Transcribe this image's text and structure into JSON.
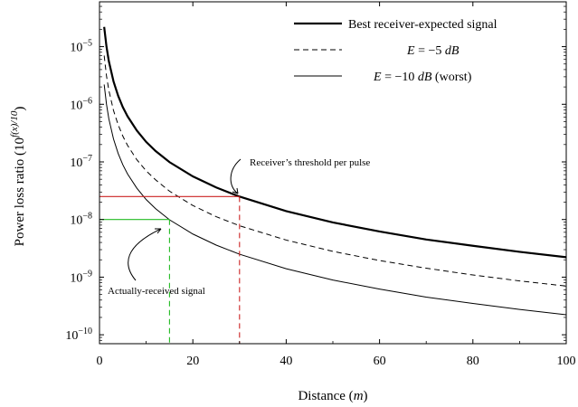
{
  "chart_data": {
    "type": "line",
    "title": "",
    "xlabel": "Distance (m)",
    "ylabel": "Power loss ratio (10^(f(x)/10))",
    "xlim": [
      0,
      100
    ],
    "ylim": [
      7e-11,
      6e-05
    ],
    "yscale": "log",
    "x_ticks": [
      0,
      20,
      40,
      60,
      80,
      100
    ],
    "y_ticks": [
      1e-10,
      1e-09,
      1e-08,
      1e-07,
      1e-06,
      1e-05
    ],
    "x_tick_labels": [
      "0",
      "20",
      "40",
      "60",
      "80",
      "100"
    ],
    "y_tick_labels": [
      {
        "base": "10",
        "exp": "−10"
      },
      {
        "base": "10",
        "exp": "−9"
      },
      {
        "base": "10",
        "exp": "−8"
      },
      {
        "base": "10",
        "exp": "−7"
      },
      {
        "base": "10",
        "exp": "−6"
      },
      {
        "base": "10",
        "exp": "−5"
      }
    ],
    "grid": false,
    "legend_position": "top-right",
    "series": [
      {
        "name": "Best receiver-expected signal",
        "style": "solid-thick",
        "color": "#000000",
        "x": [
          1,
          1.5,
          2,
          3,
          4,
          5,
          6,
          8,
          10,
          12,
          15,
          20,
          25,
          30,
          40,
          50,
          60,
          70,
          80,
          90,
          100
        ],
        "y": [
          2.2e-05,
          1e-05,
          5.6e-06,
          2.5e-06,
          1.4e-06,
          8.9e-07,
          6.2e-07,
          3.5e-07,
          2.22e-07,
          1.55e-07,
          9.9e-08,
          5.6e-08,
          3.6e-08,
          2.5e-08,
          1.4e-08,
          8.9e-09,
          6.2e-09,
          4.5e-09,
          3.5e-09,
          2.75e-09,
          2.22e-09
        ]
      },
      {
        "name": "E = −5 dB",
        "style": "dashed",
        "color": "#000000",
        "x": [
          1,
          1.5,
          2,
          3,
          4,
          5,
          6,
          8,
          10,
          12,
          15,
          20,
          25,
          30,
          40,
          50,
          60,
          70,
          80,
          90,
          100
        ],
        "y": [
          7e-06,
          3.1e-06,
          1.75e-06,
          7.8e-07,
          4.4e-07,
          2.8e-07,
          1.94e-07,
          1.09e-07,
          7e-08,
          4.9e-08,
          3.1e-08,
          1.75e-08,
          1.12e-08,
          7.8e-09,
          4.4e-09,
          2.8e-09,
          1.94e-09,
          1.43e-09,
          1.09e-09,
          8.6e-10,
          7e-10
        ]
      },
      {
        "name": "E = −10 dB (worst)",
        "style": "solid-thin",
        "color": "#000000",
        "x": [
          1,
          1.5,
          2,
          3,
          4,
          5,
          6,
          8,
          10,
          12,
          15,
          20,
          25,
          30,
          40,
          50,
          60,
          70,
          80,
          90,
          100
        ],
        "y": [
          2.2e-06,
          1e-06,
          5.6e-07,
          2.5e-07,
          1.4e-07,
          8.9e-08,
          6.2e-08,
          3.5e-08,
          2.22e-08,
          1.55e-08,
          9.9e-09,
          5.6e-09,
          3.6e-09,
          2.5e-09,
          1.4e-09,
          8.9e-10,
          6.2e-10,
          4.5e-10,
          3.5e-10,
          2.75e-10,
          2.22e-10
        ]
      }
    ],
    "reference_lines": [
      {
        "name": "receiver-threshold",
        "x": 30,
        "y": 2.5e-08,
        "color": "#cc2222"
      },
      {
        "name": "actually-received",
        "x": 15,
        "y": 1e-08,
        "color": "#22bb22"
      }
    ],
    "annotations": [
      {
        "text": "Receiver’s threshold per pulse",
        "points_to": {
          "x": 30,
          "y": 2.5e-08
        }
      },
      {
        "text": "Actually-received signal",
        "points_to": {
          "x": 15,
          "y": 1e-08
        }
      }
    ]
  },
  "labels": {
    "legend_0_text": "Best receiver-expected signal",
    "legend_1_E": "E",
    "legend_1_rest": " = −5 ",
    "legend_1_unit": "dB",
    "legend_2_E": "E",
    "legend_2_rest": " = −10 ",
    "legend_2_unit": "dB",
    "legend_2_suffix": " (worst)",
    "xlabel_text": "Distance (",
    "xlabel_unit": "m",
    "xlabel_close": ")",
    "ylabel_main": "Power loss ratio (10",
    "ylabel_exp": "f(x)/10",
    "ylabel_close": ")",
    "annot_threshold": "Receiver’s threshold per pulse",
    "annot_received": "Actually-received signal"
  }
}
